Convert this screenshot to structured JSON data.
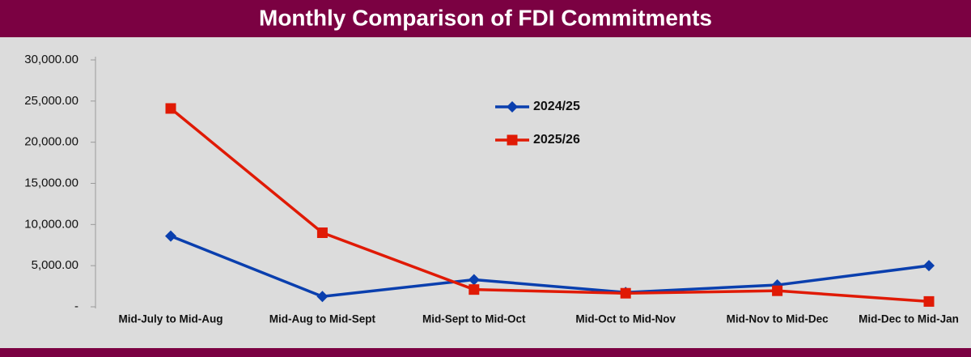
{
  "chart_data": {
    "type": "line",
    "title": "Monthly Comparison of FDI Commitments",
    "categories": [
      "Mid-July to Mid-Aug",
      "Mid-Aug to Mid-Sept",
      "Mid-Sept to Mid-Oct",
      "Mid-Oct to Mid-Nov",
      "Mid-Nov to Mid-Dec",
      "Mid-Dec to Mid-Jan"
    ],
    "series": [
      {
        "name": "2024/25",
        "color": "#0a3fae",
        "marker": "diamond",
        "values": [
          8600,
          1250,
          3300,
          1750,
          2650,
          5000
        ]
      },
      {
        "name": "2025/26",
        "color": "#e01a05",
        "marker": "square",
        "values": [
          24100,
          9000,
          2100,
          1650,
          1950,
          650
        ]
      }
    ],
    "ylim": [
      0,
      30000
    ],
    "yticks": [
      {
        "value": 0,
        "label": "-"
      },
      {
        "value": 5000,
        "label": "5,000.00"
      },
      {
        "value": 10000,
        "label": "10,000.00"
      },
      {
        "value": 15000,
        "label": "15,000.00"
      },
      {
        "value": 20000,
        "label": "20,000.00"
      },
      {
        "value": 25000,
        "label": "25,000.00"
      },
      {
        "value": 30000,
        "label": "30,000.00"
      }
    ],
    "grid": false,
    "legend": "upper center"
  }
}
